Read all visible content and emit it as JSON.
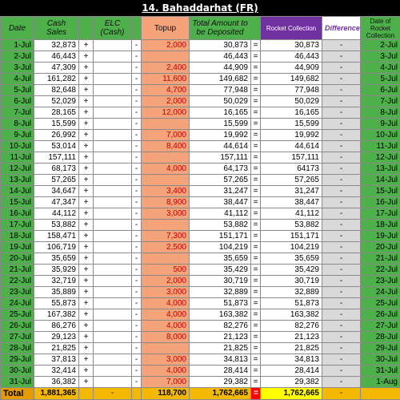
{
  "sheet": {
    "title": "14. Bahaddarhat (FR)"
  },
  "headers": {
    "date": "Date",
    "cash_sales": "Cash Sales",
    "elc": "ELC (Cash)",
    "topup": "Topup",
    "total_amount": "Total Amount to be Deposited",
    "rocket": "Rocket Collection",
    "difference": "Difference",
    "rocket_date": "Date of Rocket Collection"
  },
  "rows": [
    {
      "date": "1-Jul",
      "cash": "32,873",
      "plus": "+",
      "elc": "",
      "dash": "-",
      "topup": "2,000",
      "total": "30,873",
      "eq": "=",
      "rocket": "30,873",
      "diff": "-",
      "rdate": "2-Jul"
    },
    {
      "date": "2-Jul",
      "cash": "46,443",
      "plus": "+",
      "elc": "",
      "dash": "-",
      "topup": "",
      "total": "46,443",
      "eq": "=",
      "rocket": "46,443",
      "diff": "-",
      "rdate": "3-Jul"
    },
    {
      "date": "3-Jul",
      "cash": "47,309",
      "plus": "+",
      "elc": "",
      "dash": "-",
      "topup": "2,400",
      "total": "44,909",
      "eq": "=",
      "rocket": "44,909",
      "diff": "-",
      "rdate": "4-Jul"
    },
    {
      "date": "4-Jul",
      "cash": "161,282",
      "plus": "+",
      "elc": "",
      "dash": "-",
      "topup": "11,600",
      "total": "149,682",
      "eq": "=",
      "rocket": "149,682",
      "diff": "-",
      "rdate": "5-Jul"
    },
    {
      "date": "5-Jul",
      "cash": "82,648",
      "plus": "+",
      "elc": "",
      "dash": "-",
      "topup": "4,700",
      "total": "77,948",
      "eq": "=",
      "rocket": "77,948",
      "diff": "-",
      "rdate": "6-Jul"
    },
    {
      "date": "6-Jul",
      "cash": "52,029",
      "plus": "+",
      "elc": "",
      "dash": "-",
      "topup": "2,000",
      "total": "50,029",
      "eq": "=",
      "rocket": "50,029",
      "diff": "-",
      "rdate": "7-Jul"
    },
    {
      "date": "7-Jul",
      "cash": "28,165",
      "plus": "+",
      "elc": "",
      "dash": "-",
      "topup": "12,000",
      "total": "16,165",
      "eq": "=",
      "rocket": "16,165",
      "diff": "-",
      "rdate": "8-Jul"
    },
    {
      "date": "8-Jul",
      "cash": "15,599",
      "plus": "+",
      "elc": "",
      "dash": "-",
      "topup": "",
      "total": "15,599",
      "eq": "=",
      "rocket": "15,599",
      "diff": "-",
      "rdate": "9-Jul"
    },
    {
      "date": "9-Jul",
      "cash": "26,992",
      "plus": "+",
      "elc": "",
      "dash": "-",
      "topup": "7,000",
      "total": "19,992",
      "eq": "=",
      "rocket": "19,992",
      "diff": "-",
      "rdate": "10-Jul"
    },
    {
      "date": "10-Jul",
      "cash": "53,014",
      "plus": "+",
      "elc": "",
      "dash": "-",
      "topup": "8,400",
      "total": "44,614",
      "eq": "=",
      "rocket": "44,614",
      "diff": "-",
      "rdate": "11-Jul"
    },
    {
      "date": "11-Jul",
      "cash": "157,111",
      "plus": "+",
      "elc": "",
      "dash": "-",
      "topup": "",
      "total": "157,111",
      "eq": "=",
      "rocket": "157,111",
      "diff": "-",
      "rdate": "12-Jul"
    },
    {
      "date": "12-Jul",
      "cash": "68,173",
      "plus": "+",
      "elc": "",
      "dash": "-",
      "topup": "4,000",
      "total": "64,173",
      "eq": "=",
      "rocket": "64173",
      "diff": "-",
      "rdate": "13-Jul"
    },
    {
      "date": "13-Jul",
      "cash": "57,265",
      "plus": "+",
      "elc": "",
      "dash": "-",
      "topup": "",
      "total": "57,265",
      "eq": "=",
      "rocket": "57,265",
      "diff": "-",
      "rdate": "14-Jul"
    },
    {
      "date": "14-Jul",
      "cash": "34,647",
      "plus": "+",
      "elc": "",
      "dash": "-",
      "topup": "3,400",
      "total": "31,247",
      "eq": "=",
      "rocket": "31,247",
      "diff": "-",
      "rdate": "15-Jul"
    },
    {
      "date": "15-Jul",
      "cash": "47,347",
      "plus": "+",
      "elc": "",
      "dash": "-",
      "topup": "8,900",
      "total": "38,447",
      "eq": "=",
      "rocket": "38,447",
      "diff": "-",
      "rdate": "16-Jul"
    },
    {
      "date": "16-Jul",
      "cash": "44,112",
      "plus": "+",
      "elc": "",
      "dash": "-",
      "topup": "3,000",
      "total": "41,112",
      "eq": "=",
      "rocket": "41,112",
      "diff": "-",
      "rdate": "17-Jul"
    },
    {
      "date": "17-Jul",
      "cash": "53,882",
      "plus": "+",
      "elc": "",
      "dash": "-",
      "topup": "",
      "total": "53,882",
      "eq": "=",
      "rocket": "53,882",
      "diff": "-",
      "rdate": "18-Jul"
    },
    {
      "date": "18-Jul",
      "cash": "158,471",
      "plus": "+",
      "elc": "",
      "dash": "-",
      "topup": "7,300",
      "total": "151,171",
      "eq": "=",
      "rocket": "151,171",
      "diff": "-",
      "rdate": "19-Jul"
    },
    {
      "date": "19-Jul",
      "cash": "106,719",
      "plus": "+",
      "elc": "",
      "dash": "-",
      "topup": "2,500",
      "total": "104,219",
      "eq": "=",
      "rocket": "104,219",
      "diff": "-",
      "rdate": "20-Jul"
    },
    {
      "date": "20-Jul",
      "cash": "35,659",
      "plus": "+",
      "elc": "",
      "dash": "-",
      "topup": "",
      "total": "35,659",
      "eq": "=",
      "rocket": "35,659",
      "diff": "-",
      "rdate": "21-Jul"
    },
    {
      "date": "21-Jul",
      "cash": "35,929",
      "plus": "+",
      "elc": "",
      "dash": "-",
      "topup": "500",
      "total": "35,429",
      "eq": "=",
      "rocket": "35,429",
      "diff": "-",
      "rdate": "22-Jul"
    },
    {
      "date": "22-Jul",
      "cash": "32,719",
      "plus": "+",
      "elc": "",
      "dash": "-",
      "topup": "2,000",
      "total": "30,719",
      "eq": "=",
      "rocket": "30,719",
      "diff": "-",
      "rdate": "23-Jul"
    },
    {
      "date": "23-Jul",
      "cash": "35,889",
      "plus": "+",
      "elc": "",
      "dash": "-",
      "topup": "3,000",
      "total": "32,889",
      "eq": "=",
      "rocket": "32,889",
      "diff": "-",
      "rdate": "24-Jul"
    },
    {
      "date": "24-Jul",
      "cash": "55,873",
      "plus": "+",
      "elc": "",
      "dash": "-",
      "topup": "4,000",
      "total": "51,873",
      "eq": "=",
      "rocket": "51,873",
      "diff": "-",
      "rdate": "25-Jul"
    },
    {
      "date": "25-Jul",
      "cash": "167,382",
      "plus": "+",
      "elc": "",
      "dash": "-",
      "topup": "4,000",
      "total": "163,382",
      "eq": "=",
      "rocket": "163,382",
      "diff": "-",
      "rdate": "26-Jul"
    },
    {
      "date": "26-Jul",
      "cash": "86,276",
      "plus": "+",
      "elc": "",
      "dash": "-",
      "topup": "4,000",
      "total": "82,276",
      "eq": "=",
      "rocket": "82,276",
      "diff": "-",
      "rdate": "27-Jul"
    },
    {
      "date": "27-Jul",
      "cash": "29,123",
      "plus": "+",
      "elc": "",
      "dash": "-",
      "topup": "8,000",
      "total": "21,123",
      "eq": "=",
      "rocket": "21,123",
      "diff": "-",
      "rdate": "28-Jul"
    },
    {
      "date": "28-Jul",
      "cash": "21,825",
      "plus": "+",
      "elc": "",
      "dash": "-",
      "topup": "",
      "total": "21,825",
      "eq": "=",
      "rocket": "21,825",
      "diff": "-",
      "rdate": "29-Jul"
    },
    {
      "date": "29-Jul",
      "cash": "37,813",
      "plus": "+",
      "elc": "",
      "dash": "-",
      "topup": "3,000",
      "total": "34,813",
      "eq": "=",
      "rocket": "34,813",
      "diff": "-",
      "rdate": "30-Jul"
    },
    {
      "date": "30-Jul",
      "cash": "32,414",
      "plus": "+",
      "elc": "",
      "dash": "-",
      "topup": "4,000",
      "total": "28,414",
      "eq": "=",
      "rocket": "28,414",
      "diff": "-",
      "rdate": "31-Jul"
    },
    {
      "date": "31-Jul",
      "cash": "36,382",
      "plus": "+",
      "elc": "",
      "dash": "-",
      "topup": "7,000",
      "total": "29,382",
      "eq": "=",
      "rocket": "29,382",
      "diff": "-",
      "rdate": "1-Aug"
    }
  ],
  "totals": {
    "label": "Total",
    "cash": "1,881,365",
    "elc": "-",
    "topup": "118,700",
    "total": "1,762,665",
    "eq": "=",
    "rocket": "1,762,665",
    "diff": "-"
  }
}
